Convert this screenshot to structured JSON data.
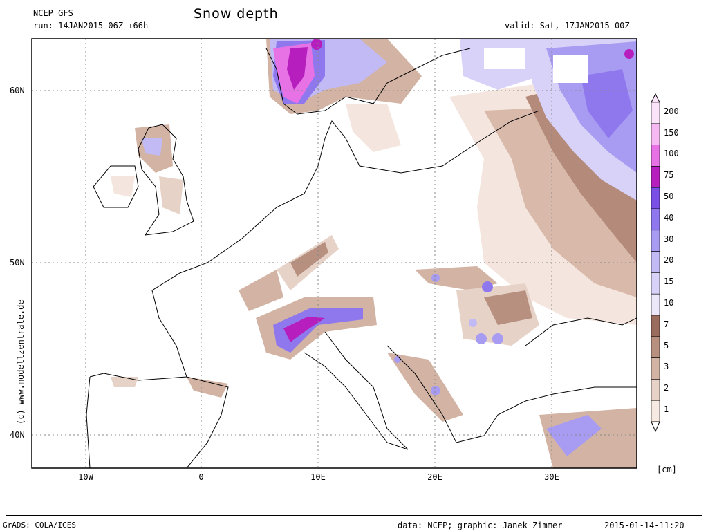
{
  "header": {
    "model": "NCEP GFS",
    "run": "run: 14JAN2015 06Z +66h",
    "title": "Snow depth",
    "valid": "valid: Sat, 17JAN2015 00Z"
  },
  "side_text": "(c) www.modellzentrale.de",
  "lat_labels": [
    "60N",
    "50N",
    "40N"
  ],
  "lon_labels": [
    "10W",
    "0",
    "10E",
    "20E",
    "30E"
  ],
  "legend": {
    "unit": "[cm]",
    "levels": [
      "200",
      "150",
      "100",
      "75",
      "50",
      "40",
      "30",
      "20",
      "15",
      "10",
      "7",
      "5",
      "3",
      "2",
      "1"
    ],
    "colors": [
      "#fbe3fa",
      "#f5b8f3",
      "#e672e6",
      "#b61fbd",
      "#7a4fe6",
      "#8f78ed",
      "#a89cf2",
      "#c2baf5",
      "#d8d2f8",
      "#ece8fa",
      "#9a6c5e",
      "#b8907f",
      "#d2b3a4",
      "#e6d2c7",
      "#f7eae3"
    ]
  },
  "footer": {
    "left": "GrADS: COLA/IGES",
    "credit": "data: NCEP; graphic: Janek Zimmer",
    "timestamp": "2015-01-14-11:20"
  },
  "colors": {
    "frame": "#000000",
    "grid": "#888888",
    "land": "#ffffff"
  }
}
